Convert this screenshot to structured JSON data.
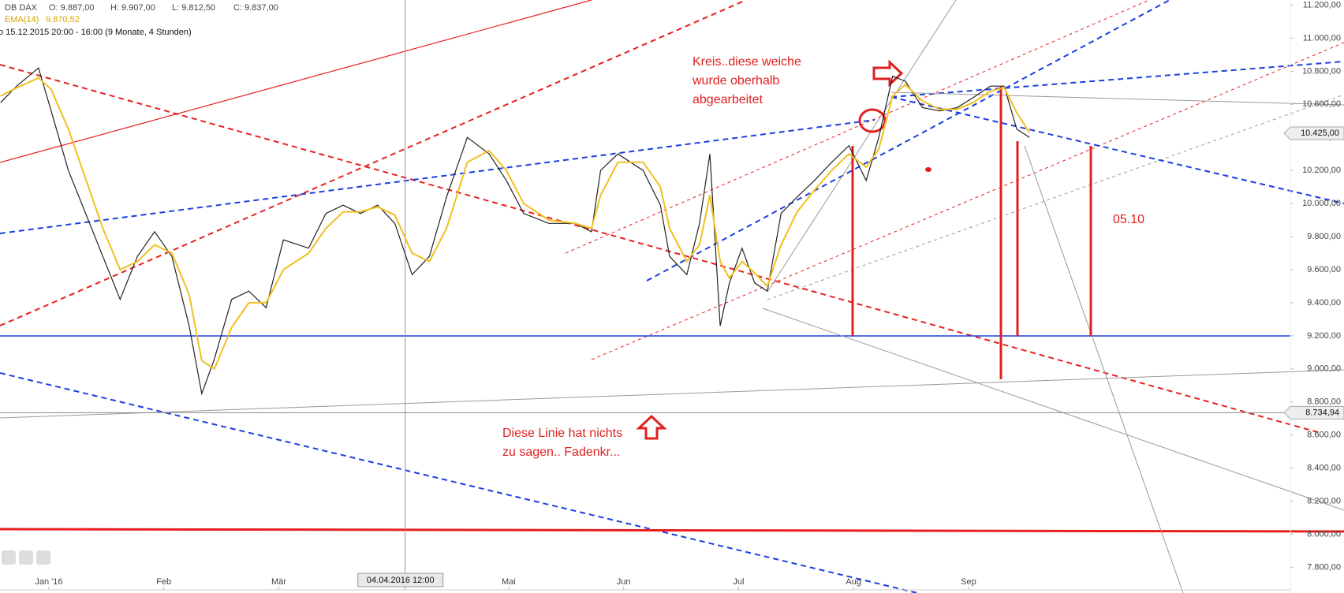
{
  "chart_data": {
    "type": "line",
    "header": {
      "open": "O: 9.887,00",
      "high": "H: 9.907,00",
      "low": "L: 9.812,50",
      "close": "C: 9.837,00",
      "ema_value": "9.870,52",
      "period": "o 15.12.2015 20:00 - 16:00 (9 Monate, 4 Stunden)"
    },
    "x": [
      0.58,
      0.72,
      0.91,
      1.02,
      1.17,
      1.32,
      1.47,
      1.62,
      1.77,
      1.92,
      2.07,
      2.22,
      2.33,
      2.44,
      2.59,
      2.74,
      2.89,
      3.04,
      3.26,
      3.41,
      3.56,
      3.71,
      3.86,
      4.01,
      4.16,
      4.31,
      4.46,
      4.64,
      4.83,
      4.98,
      5.13,
      5.35,
      5.58,
      5.72,
      5.8,
      5.95,
      6.17,
      6.32,
      6.4,
      6.55,
      6.66,
      6.75,
      6.84,
      6.92,
      7.03,
      7.14,
      7.25,
      7.37,
      7.51,
      7.66,
      7.81,
      7.96,
      8.11,
      8.22,
      8.34,
      8.45,
      8.6,
      8.75,
      8.9,
      9.04,
      9.19,
      9.31,
      9.42,
      9.53
    ],
    "series": [
      {
        "name": "DB DAX",
        "color": "#222222",
        "values": [
          10610,
          10710,
          10820,
          10560,
          10200,
          9940,
          9680,
          9420,
          9680,
          9830,
          9680,
          9260,
          8850,
          9060,
          9420,
          9470,
          9370,
          9780,
          9730,
          9940,
          9990,
          9940,
          9990,
          9880,
          9570,
          9680,
          10040,
          10400,
          10300,
          10140,
          9940,
          9880,
          9880,
          9830,
          10200,
          10300,
          10200,
          9990,
          9680,
          9570,
          9880,
          10300,
          9260,
          9520,
          9730,
          9520,
          9470,
          9940,
          10040,
          10140,
          10250,
          10350,
          10140,
          10400,
          10770,
          10740,
          10580,
          10560,
          10580,
          10640,
          10710,
          10710,
          10450,
          10400
        ]
      },
      {
        "name": "EMA(14)",
        "color": "#f0c020",
        "values": [
          10650,
          10700,
          10760,
          10690,
          10450,
          10150,
          9850,
          9600,
          9650,
          9750,
          9700,
          9450,
          9050,
          9000,
          9250,
          9400,
          9400,
          9600,
          9700,
          9850,
          9950,
          9950,
          9980,
          9930,
          9700,
          9650,
          9850,
          10250,
          10320,
          10200,
          10000,
          9900,
          9880,
          9850,
          10050,
          10250,
          10250,
          10100,
          9850,
          9650,
          9750,
          10050,
          9650,
          9550,
          9650,
          9580,
          9500,
          9750,
          9950,
          10080,
          10200,
          10300,
          10220,
          10330,
          10650,
          10720,
          10620,
          10570,
          10570,
          10610,
          10680,
          10700,
          10550,
          10430
        ]
      }
    ],
    "xlim": [
      0.575,
      11.8
    ],
    "xticks": [
      {
        "value": 1,
        "label": "Jan '16"
      },
      {
        "value": 2,
        "label": "Feb"
      },
      {
        "value": 3,
        "label": "Mär"
      },
      {
        "value": 5,
        "label": "Mai"
      },
      {
        "value": 6,
        "label": "Jun"
      },
      {
        "value": 7,
        "label": "Jul"
      },
      {
        "value": 8,
        "label": "Aug"
      },
      {
        "value": 9,
        "label": "Sep"
      }
    ],
    "ylim": [
      7800,
      11200
    ],
    "yticks": [
      {
        "value": 7800,
        "label": "7.800,00"
      },
      {
        "value": 8000,
        "label": "8.000,00"
      },
      {
        "value": 8200,
        "label": "8.200,00"
      },
      {
        "value": 8400,
        "label": "8.400,00"
      },
      {
        "value": 8600,
        "label": "8.600,00"
      },
      {
        "value": 8800,
        "label": "8.800,00"
      },
      {
        "value": 9000,
        "label": "9.000,00"
      },
      {
        "value": 9200,
        "label": "9.200,00"
      },
      {
        "value": 9400,
        "label": "9.400,00"
      },
      {
        "value": 9600,
        "label": "9.600,00"
      },
      {
        "value": 9800,
        "label": "9.800,00"
      },
      {
        "value": 10000,
        "label": "10.000,00"
      },
      {
        "value": 10200,
        "label": "10.200,00"
      },
      {
        "value": 10400,
        "label": "10.400,00"
      },
      {
        "value": 10600,
        "label": "10.600,00"
      },
      {
        "value": 10800,
        "label": "10.800,00"
      },
      {
        "value": 11000,
        "label": "11.000,00"
      },
      {
        "value": 11200,
        "label": "11.200,00"
      }
    ],
    "price_marker": {
      "value": 10425,
      "label": "10.425,00"
    },
    "level_marker": {
      "value": 8734.94,
      "label": "8.734,94"
    },
    "crosshair": {
      "value": 4.1,
      "label": "04.04.2016 12:00"
    },
    "annotations": [
      {
        "lines": [
          "Kreis..diese weiche",
          "wurde oberhalb",
          "abgearbeitet"
        ]
      },
      {
        "lines": [
          "Diese Linie hat nichts",
          "zu sagen.. Fadenkr..."
        ]
      },
      {
        "lines": [
          "05.10"
        ]
      }
    ]
  }
}
